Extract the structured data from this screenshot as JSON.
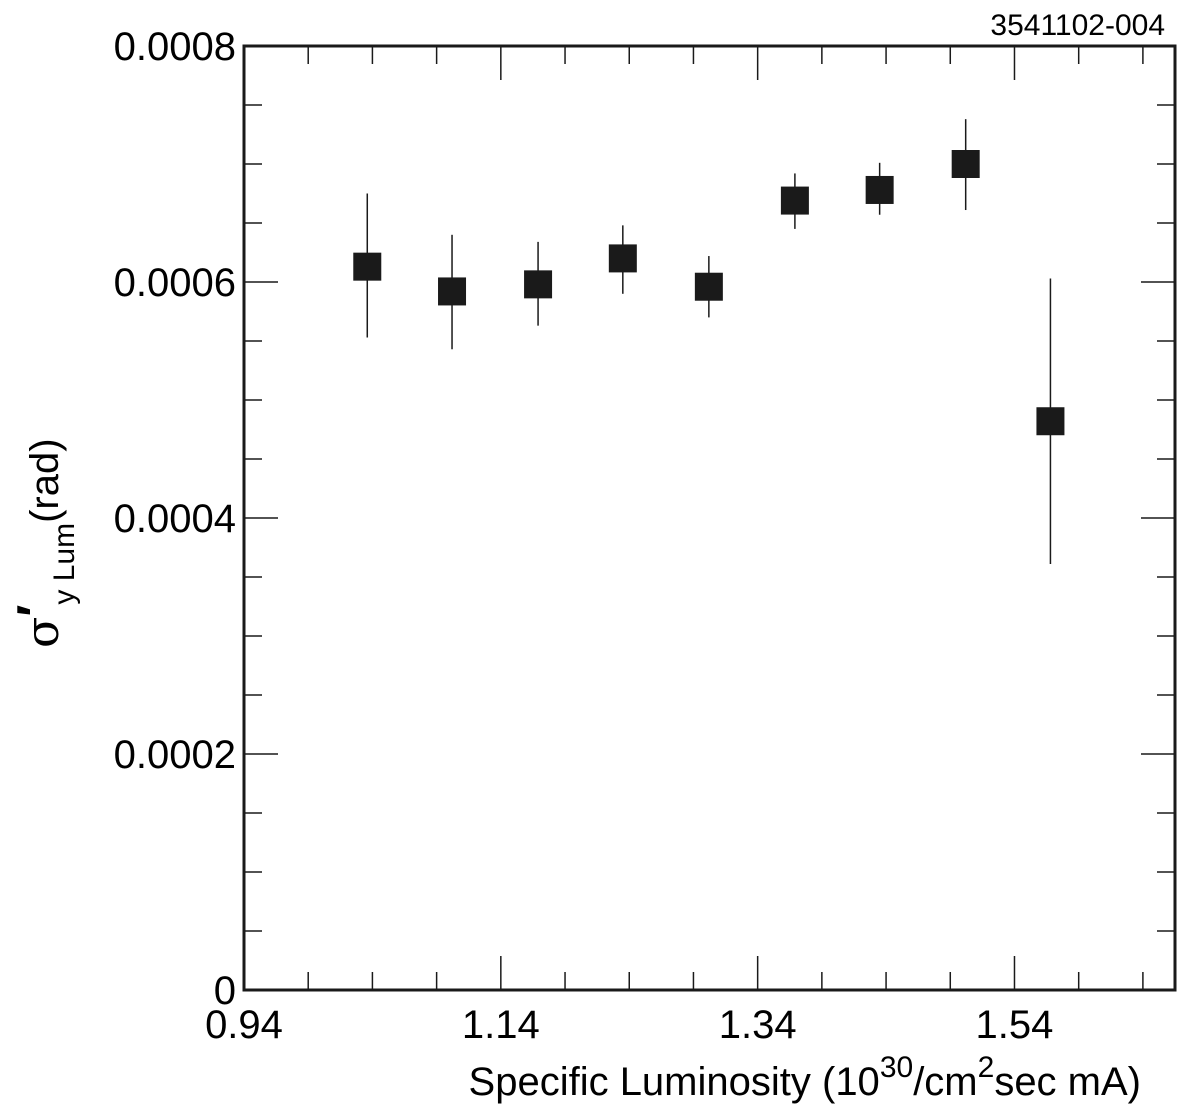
{
  "chart_data": {
    "type": "scatter",
    "plot_id": "3541102-004",
    "xlabel": {
      "main": "Specific Luminosity (10",
      "sup1": "30",
      "mid": "/cm",
      "sup2": "2",
      "end": "sec mA)"
    },
    "ylabel": {
      "symbol": "σ",
      "prime": "′",
      "subscript": "y Lum",
      "unit": "(rad)"
    },
    "xlim": [
      0.94,
      1.665
    ],
    "ylim": [
      0,
      0.0008
    ],
    "x_ticks": [
      0.94,
      1.14,
      1.34,
      1.54
    ],
    "x_tick_labels": [
      "0.94",
      "1.14",
      "1.34",
      "1.54"
    ],
    "x_minor_step": 0.05,
    "y_ticks": [
      0,
      0.0002,
      0.0004,
      0.0006,
      0.0008
    ],
    "y_tick_labels": [
      "0",
      "0.0002",
      "0.0004",
      "0.0006",
      "0.0008"
    ],
    "y_minor_step": 5e-05,
    "marker": "filled-square",
    "marker_color": "#1a1a1a",
    "grid": false,
    "points": [
      {
        "x": 1.036,
        "y": 0.000613,
        "y_lo": 0.000553,
        "y_hi": 0.000675
      },
      {
        "x": 1.102,
        "y": 0.000592,
        "y_lo": 0.000543,
        "y_hi": 0.00064
      },
      {
        "x": 1.169,
        "y": 0.000598,
        "y_lo": 0.000563,
        "y_hi": 0.000634
      },
      {
        "x": 1.235,
        "y": 0.00062,
        "y_lo": 0.00059,
        "y_hi": 0.000648
      },
      {
        "x": 1.302,
        "y": 0.000596,
        "y_lo": 0.00057,
        "y_hi": 0.000622
      },
      {
        "x": 1.369,
        "y": 0.000669,
        "y_lo": 0.000645,
        "y_hi": 0.000692
      },
      {
        "x": 1.435,
        "y": 0.000678,
        "y_lo": 0.000657,
        "y_hi": 0.000701
      },
      {
        "x": 1.502,
        "y": 0.0007,
        "y_lo": 0.000661,
        "y_hi": 0.000738
      },
      {
        "x": 1.568,
        "y": 0.000482,
        "y_lo": 0.000361,
        "y_hi": 0.000603
      }
    ]
  }
}
